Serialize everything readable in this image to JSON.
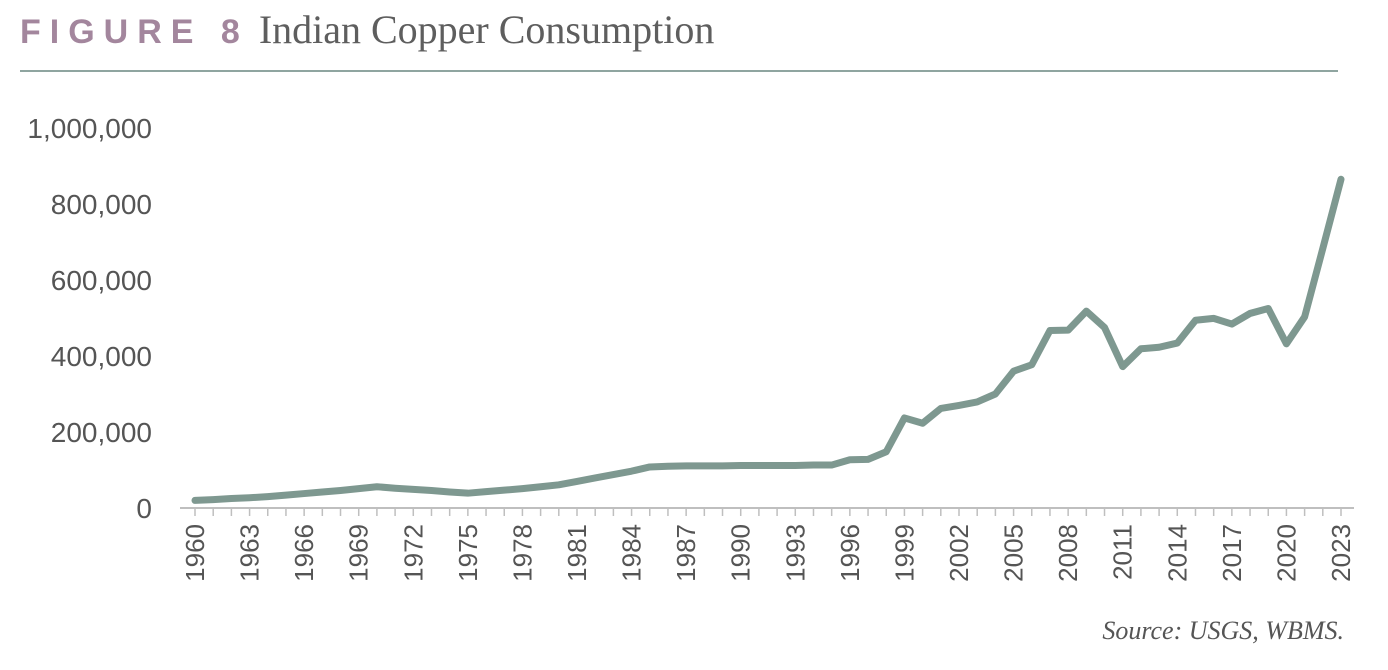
{
  "figure": {
    "label": "FIGURE 8",
    "title": "Indian Copper Consumption",
    "source": "Source: USGS, WBMS.",
    "line_color": "#7e9890",
    "label_color": "#a3869d"
  },
  "chart_data": {
    "type": "line",
    "title": "Indian Copper Consumption",
    "xlabel": "",
    "ylabel": "",
    "ylim": [
      0,
      1000000
    ],
    "yticks": [
      0,
      200000,
      400000,
      600000,
      800000,
      1000000
    ],
    "ytick_labels": [
      "0",
      "200,000",
      "400,000",
      "600,000",
      "800,000",
      "1,000,000"
    ],
    "xtick_labels": [
      "1960",
      "1963",
      "1966",
      "1969",
      "1972",
      "1975",
      "1978",
      "1981",
      "1984",
      "1987",
      "1990",
      "1993",
      "1996",
      "1999",
      "2002",
      "2005",
      "2008",
      "2011",
      "2014",
      "2017",
      "2020",
      "2023"
    ],
    "grid": false,
    "legend": "none",
    "series": [
      {
        "x": [
          1960,
          1961,
          1962,
          1963,
          1964,
          1965,
          1966,
          1967,
          1968,
          1969,
          1970,
          1971,
          1972,
          1973,
          1974,
          1975,
          1976,
          1977,
          1978,
          1979,
          1980,
          1981,
          1982,
          1983,
          1984,
          1985,
          1986,
          1987,
          1988,
          1989,
          1990,
          1991,
          1992,
          1993,
          1994,
          1995,
          1996,
          1997,
          1998,
          1999,
          2000,
          2001,
          2002,
          2003,
          2004,
          2005,
          2006,
          2007,
          2008,
          2009,
          2010,
          2011,
          2012,
          2013,
          2014,
          2015,
          2016,
          2017,
          2018,
          2019,
          2020,
          2021,
          2022,
          2023
        ],
        "values": [
          20000,
          22000,
          25000,
          27000,
          30000,
          34000,
          38000,
          42000,
          46000,
          51000,
          56000,
          52000,
          49000,
          46000,
          42000,
          39000,
          43000,
          47000,
          51000,
          56000,
          61000,
          70000,
          79000,
          88000,
          97000,
          108000,
          110000,
          111000,
          111000,
          111000,
          112000,
          112000,
          112000,
          112000,
          113000,
          113000,
          127000,
          128000,
          148000,
          237000,
          223000,
          262000,
          270000,
          279000,
          300000,
          360000,
          377000,
          467000,
          468000,
          518000,
          475000,
          372000,
          419000,
          423000,
          434000,
          494000,
          499000,
          484000,
          512000,
          525000,
          432000,
          503000,
          683000,
          865000
        ]
      }
    ]
  }
}
